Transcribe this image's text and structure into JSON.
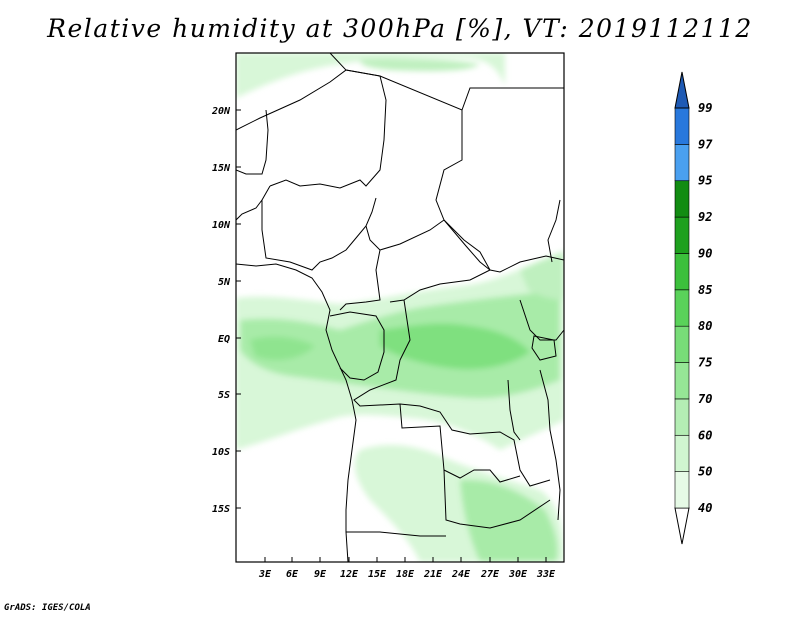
{
  "title": "Relative humidity at 300hPa [%], VT: 2019112112",
  "credit": "GrADS: IGES/COLA",
  "map": {
    "lon_labels": [
      "3E",
      "6E",
      "9E",
      "12E",
      "15E",
      "18E",
      "21E",
      "24E",
      "27E",
      "30E",
      "33E"
    ],
    "lat_labels": [
      "20N",
      "15N",
      "10N",
      "5N",
      "EQ",
      "5S",
      "10S",
      "15S"
    ]
  },
  "colorbar": {
    "levels": [
      "40",
      "50",
      "60",
      "70",
      "75",
      "80",
      "85",
      "90",
      "92",
      "95",
      "97",
      "99"
    ],
    "colors": [
      "#ffffff",
      "#e6fae6",
      "#d0f5d0",
      "#b4edb4",
      "#96e696",
      "#78dc78",
      "#5ad25a",
      "#3cc03c",
      "#1ea01e",
      "#128c12",
      "#4aa0f0",
      "#2878dc",
      "#1e5ab4"
    ]
  },
  "colors": {
    "humid_light": "#d8f7d8",
    "humid_mid": "#a8eba8",
    "humid_high": "#7fe07f",
    "border": "#000000"
  }
}
